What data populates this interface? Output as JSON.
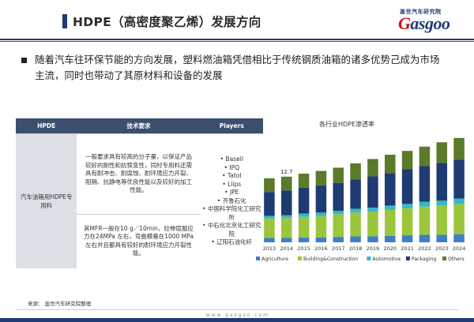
{
  "header": {
    "title": "HDPE（高密度聚乙烯）发展方向",
    "logo_cn": "盖世汽车研究院",
    "logo_en_g": "G",
    "logo_en_rest": "asgoo"
  },
  "bullet": {
    "text": "随着汽车往环保节能的方向发展，塑料燃油箱凭借相比于传统钢质油箱的诸多优势己成为市场主流，同时也带动了其原材料和设备的发展"
  },
  "table": {
    "headers": [
      "HPDE",
      "技术要求",
      "Players"
    ],
    "application": "汽车油箱用HDPE专用料",
    "requirement_1": "一般要求具有较高的分子量，以保证产品较好的刚性和抗犊变性，同时专用料还需具有耐冲击、耐腐蚀、耐环境应力开裂、阻隔、抗静电等优良性能以及较好的加工性能。",
    "requirement_2": "其MFR一般在10 g／10min，拉伸屈服应力在24MPa 左右，弯曲模量在1000 MPa左右并且都具有较好的耐环境应力开裂性能。",
    "players": [
      "Basell",
      "IPQ",
      "Tatol",
      "Llips",
      "JPE",
      "齐鲁石化",
      "中国科学院化工研究所",
      "中石化北京化工研究院",
      "辽阳石油化纤"
    ]
  },
  "chart_data": {
    "type": "bar",
    "stacked": true,
    "title": "各行业HDPE渗透率",
    "categories": [
      "2013",
      "2014",
      "2015",
      "2016",
      "2017",
      "2018",
      "2019",
      "2020",
      "2021",
      "2022",
      "2023",
      "2024"
    ],
    "ylim": [
      0,
      100
    ],
    "annotation": {
      "category": "2014",
      "text": "12.7"
    },
    "series": [
      {
        "name": "Agriculture",
        "color": "#3f7fc6",
        "values": [
          4.0,
          4.0,
          4.5,
          4.5,
          5.0,
          5.5,
          5.5,
          6.0,
          6.5,
          7.0,
          7.0,
          7.5
        ]
      },
      {
        "name": "Building&Construction",
        "color": "#9bc53d",
        "values": [
          18,
          18.5,
          19,
          20,
          21,
          22,
          23,
          24,
          25,
          26,
          27,
          28
        ]
      },
      {
        "name": "Automotive",
        "color": "#38b6c8",
        "values": [
          2.5,
          2.5,
          3.0,
          3.0,
          3.0,
          3.5,
          3.5,
          4.0,
          4.0,
          4.5,
          4.5,
          5.0
        ]
      },
      {
        "name": "Packaging",
        "color": "#1f3b73",
        "values": [
          22,
          23,
          24,
          25,
          26,
          27,
          29,
          30,
          32,
          33,
          35,
          36
        ]
      },
      {
        "name": "Others",
        "color": "#5b7a2a",
        "values": [
          12.7,
          12.7,
          13,
          13.5,
          14,
          15,
          16,
          17,
          17,
          18,
          19,
          20
        ]
      }
    ]
  },
  "footer": {
    "source": "来源： 盖世汽车研究院整理",
    "url": "w w w . g a s g o o . c o m"
  }
}
